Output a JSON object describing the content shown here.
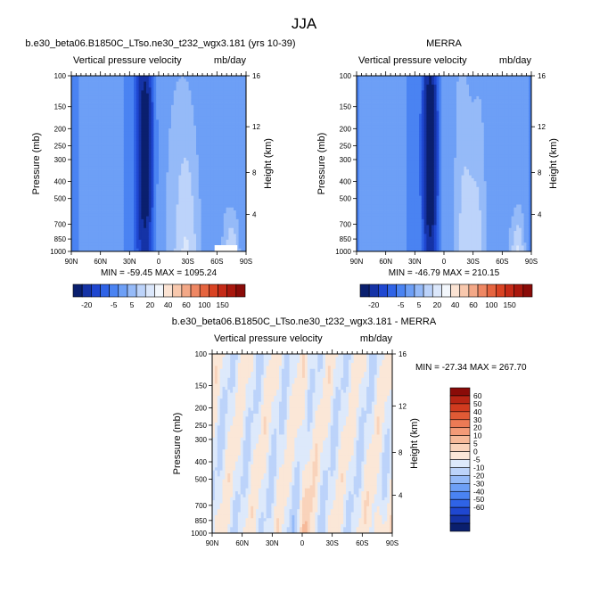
{
  "figure_title": "JJA",
  "colors": {
    "neg": [
      "#0a1f6e",
      "#1533a6",
      "#1f47d0",
      "#2f63e6",
      "#4a83f2",
      "#6d9ff6",
      "#95baf8",
      "#bcd3fa",
      "#dbe7fb"
    ],
    "zero": "#f3f7fc",
    "pos": [
      "#fbe3d3",
      "#f8c8ad",
      "#f3a887",
      "#ee8763",
      "#e5643f",
      "#d94323",
      "#c52a17",
      "#a9170d",
      "#8a0b08"
    ],
    "diff_neg": [
      "#0a1f6e",
      "#1533a6",
      "#1f47d0",
      "#2f63e6",
      "#4a83f2",
      "#6d9ff6",
      "#95baf8",
      "#bcd3fa",
      "#dde9fb"
    ],
    "diff_pos": [
      "#fbe7d7",
      "#f9d3bb",
      "#f6b999",
      "#f39a77",
      "#ec7a55",
      "#e15a35",
      "#d13b1f",
      "#b72414",
      "#8a0b08"
    ]
  },
  "chart_data": [
    {
      "type": "heatmap",
      "title": "b.e30_beta06.B1850C_LTso.ne30_t232_wgx3.181 (yrs 10-39)",
      "left_label": "Vertical pressure velocity",
      "units": "mb/day",
      "ylabel": "Pressure (mb)",
      "ylabel_right": "Height (km)",
      "xticks": [
        "90N",
        "60N",
        "30N",
        "0",
        "30S",
        "60S",
        "90S"
      ],
      "yticks": [
        "100",
        "150",
        "200",
        "250",
        "300",
        "400",
        "500",
        "700",
        "850",
        "1000"
      ],
      "yticks_right": [
        "16",
        "12",
        "8",
        "4"
      ],
      "min_max": "MIN = -59.45   MAX = 1095.24",
      "colorbar_labels": [
        "-20",
        "-5",
        "5",
        "20",
        "40",
        "60",
        "100",
        "150"
      ]
    },
    {
      "type": "heatmap",
      "title": "MERRA",
      "left_label": "Vertical pressure velocity",
      "units": "mb/day",
      "ylabel": "Pressure (mb)",
      "ylabel_right": "Height (km)",
      "xticks": [
        "90N",
        "60N",
        "30N",
        "0",
        "30S",
        "60S",
        "90S"
      ],
      "yticks": [
        "100",
        "150",
        "200",
        "250",
        "300",
        "400",
        "500",
        "700",
        "850",
        "1000"
      ],
      "yticks_right": [
        "16",
        "12",
        "8",
        "4"
      ],
      "min_max": "MIN = -46.79   MAX = 210.15",
      "colorbar_labels": [
        "-20",
        "-5",
        "5",
        "20",
        "40",
        "60",
        "100",
        "150"
      ]
    },
    {
      "type": "heatmap",
      "title": "b.e30_beta06.B1850C_LTso.ne30_t232_wgx3.181 - MERRA",
      "left_label": "Vertical pressure velocity",
      "units": "mb/day",
      "ylabel": "Pressure (mb)",
      "ylabel_right": "Height (km)",
      "xticks": [
        "90N",
        "60N",
        "30N",
        "0",
        "30S",
        "60S",
        "90S"
      ],
      "yticks": [
        "100",
        "150",
        "200",
        "250",
        "300",
        "400",
        "500",
        "700",
        "850",
        "1000"
      ],
      "yticks_right": [
        "16",
        "12",
        "8",
        "4"
      ],
      "min_max": "MIN = -27.34   MAX = 267.70",
      "colorbar_labels": [
        "60",
        "50",
        "40",
        "30",
        "20",
        "10",
        "5",
        "0",
        "-5",
        "-10",
        "-20",
        "-30",
        "-40",
        "-50",
        "-60"
      ]
    }
  ]
}
